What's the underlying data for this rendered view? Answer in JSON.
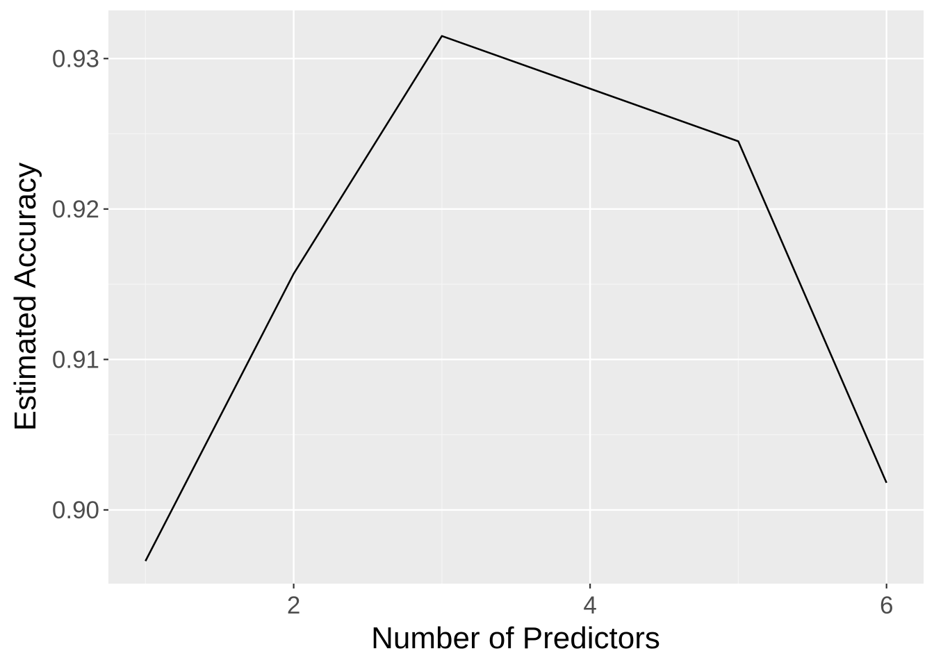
{
  "chart_data": {
    "type": "line",
    "title": "",
    "xlabel": "Number of Predictors",
    "ylabel": "Estimated Accuracy",
    "x": [
      1,
      2,
      3,
      4,
      5,
      6
    ],
    "series": [
      {
        "values": [
          0.8966,
          0.9157,
          0.9315,
          0.928,
          0.9245,
          0.9018
        ]
      }
    ],
    "xlim": [
      0.75,
      6.25
    ],
    "ylim": [
      0.8951,
      0.9332
    ],
    "x_ticks": [
      2,
      4,
      6
    ],
    "x_tick_labels": [
      "2",
      "4",
      "6"
    ],
    "y_ticks": [
      0.9,
      0.91,
      0.92,
      0.93
    ],
    "y_tick_labels": [
      "0.90",
      "0.91",
      "0.92",
      "0.93"
    ],
    "grid": true,
    "legend": "none",
    "colors": {
      "panel_background": "#ebebeb",
      "grid_major": "#ffffff",
      "grid_minor": "#f5f5f5",
      "line": "#000000",
      "tick_text": "#4d4d4d",
      "axis_title_text": "#000000"
    }
  }
}
